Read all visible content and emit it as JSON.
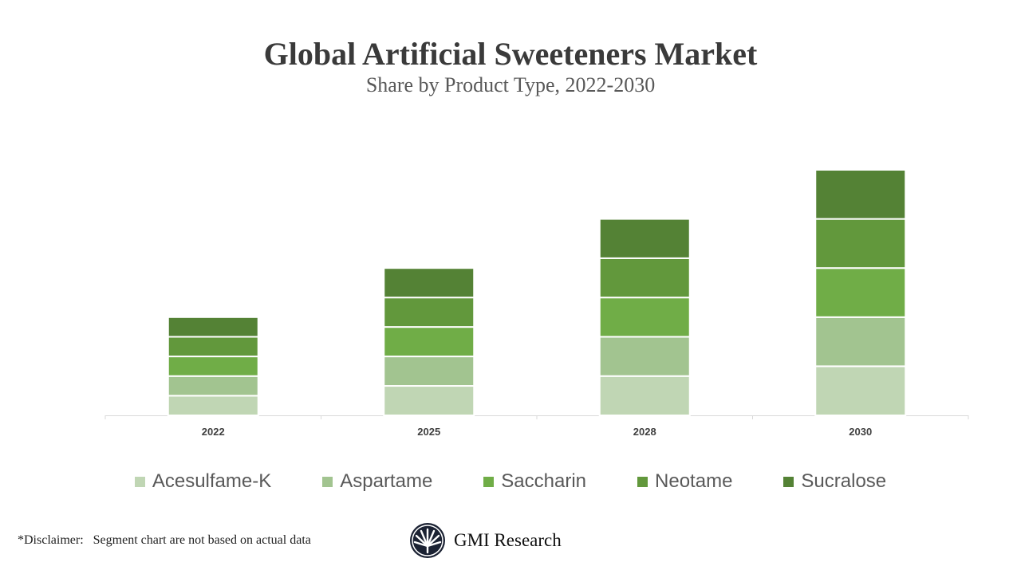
{
  "chart_data": {
    "type": "bar",
    "stacked": true,
    "title": "Global Artificial Sweeteners Market",
    "subtitle": "Share by Product Type, 2022-2030",
    "categories": [
      "2022",
      "2025",
      "2028",
      "2030"
    ],
    "series": [
      {
        "name": "Acesulfame-K",
        "color": "#C0D6B4",
        "values": [
          1,
          1.5,
          2,
          2.5
        ]
      },
      {
        "name": "Aspartame",
        "color": "#A2C490",
        "values": [
          1,
          1.5,
          2,
          2.5
        ]
      },
      {
        "name": "Saccharin",
        "color": "#70AD47",
        "values": [
          1,
          1.5,
          2,
          2.5
        ]
      },
      {
        "name": "Neotame",
        "color": "#62983C",
        "values": [
          1,
          1.5,
          2,
          2.5
        ]
      },
      {
        "name": "Sucralose",
        "color": "#548235",
        "values": [
          1,
          1.5,
          2,
          2.5
        ]
      }
    ],
    "y_axis_visible": false,
    "grid": false,
    "legend_position": "bottom"
  },
  "footer": {
    "disclaimer": "*Disclaimer:   Segment chart are not based on actual data",
    "brand": "GMI Research"
  }
}
